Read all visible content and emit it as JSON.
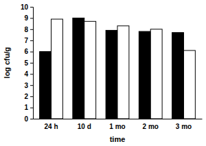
{
  "chart_data": {
    "type": "bar",
    "categories": [
      "24 h",
      "10 d",
      "1 mo",
      "2 mo",
      "3 mo"
    ],
    "series": [
      {
        "color": "#000000",
        "values": [
          6.0,
          9.0,
          7.9,
          7.8,
          7.7
        ]
      },
      {
        "color": "#ffffff",
        "values": [
          8.9,
          8.7,
          8.3,
          8.0,
          6.1
        ]
      }
    ],
    "xlabel": "time",
    "ylabel": "log cfu/g",
    "ylim": [
      0,
      10
    ],
    "yticks": [
      0,
      1,
      2,
      3,
      4,
      5,
      6,
      7,
      8,
      9,
      10
    ]
  }
}
